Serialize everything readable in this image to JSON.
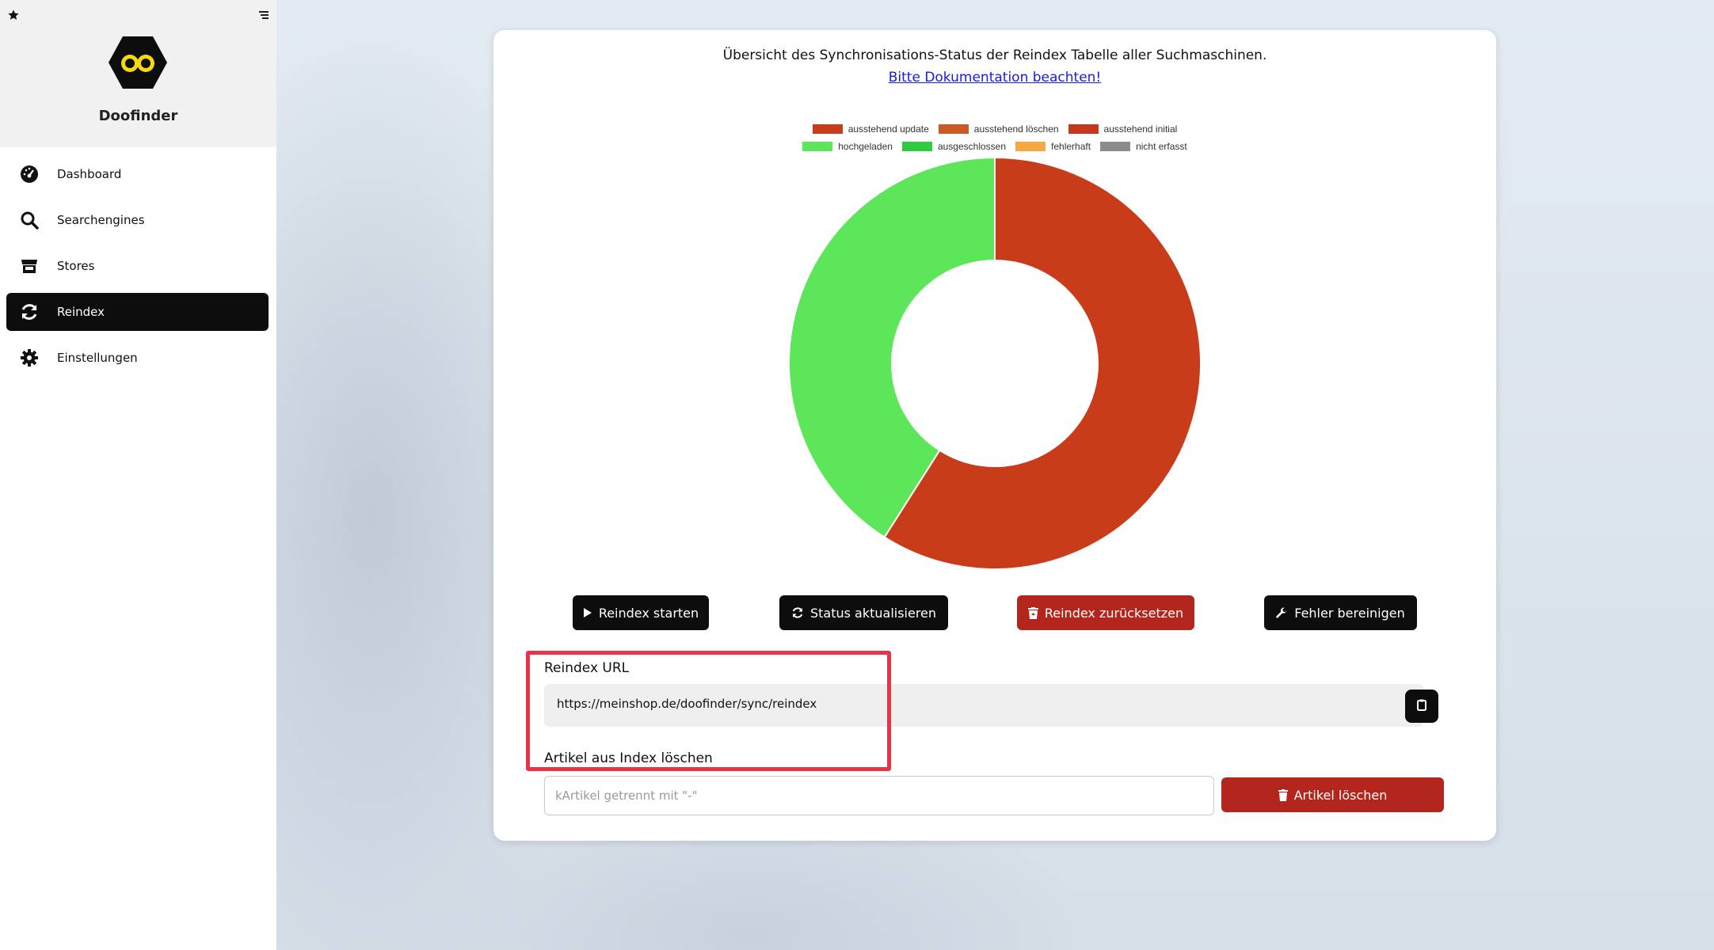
{
  "sidebar": {
    "brand": "Doofinder",
    "items": [
      {
        "label": "Dashboard",
        "icon": "gauge-icon"
      },
      {
        "label": "Searchengines",
        "icon": "search-icon"
      },
      {
        "label": "Stores",
        "icon": "store-icon"
      },
      {
        "label": "Reindex",
        "icon": "sync-icon",
        "active": true
      },
      {
        "label": "Einstellungen",
        "icon": "gear-icon"
      }
    ]
  },
  "card": {
    "title": "Übersicht des Synchronisations-Status der Reindex Tabelle aller Suchmaschinen.",
    "doc_link": "Bitte Dokumentation beachten!"
  },
  "chart_data": {
    "type": "pie",
    "legend": [
      {
        "name": "ausstehend update",
        "color": "#c83c1a"
      },
      {
        "name": "ausstehend löschen",
        "color": "#cc5a22"
      },
      {
        "name": "ausstehend initial",
        "color": "#c8361c"
      },
      {
        "name": "hochgeladen",
        "color": "#5ee65a"
      },
      {
        "name": "ausgeschlossen",
        "color": "#2ecc40"
      },
      {
        "name": "fehlerhaft",
        "color": "#f5a742"
      },
      {
        "name": "nicht erfasst",
        "color": "#8c8c8c"
      }
    ],
    "slices": [
      {
        "name": "ausstehend update",
        "value": 59,
        "color": "#c83c1a"
      },
      {
        "name": "hochgeladen",
        "value": 41,
        "color": "#5ee65a"
      }
    ],
    "donut": true
  },
  "buttons": {
    "start": "Reindex starten",
    "refresh": "Status aktualisieren",
    "reset": "Reindex zurücksetzen",
    "fix": "Fehler bereinigen"
  },
  "reindex_url": {
    "label": "Reindex URL",
    "value": "https://meinshop.de/doofinder/sync/reindex"
  },
  "delete_articles": {
    "label": "Artikel aus Index löschen",
    "placeholder": "kArtikel getrennt mit \"-\"",
    "button": "Artikel löschen"
  }
}
